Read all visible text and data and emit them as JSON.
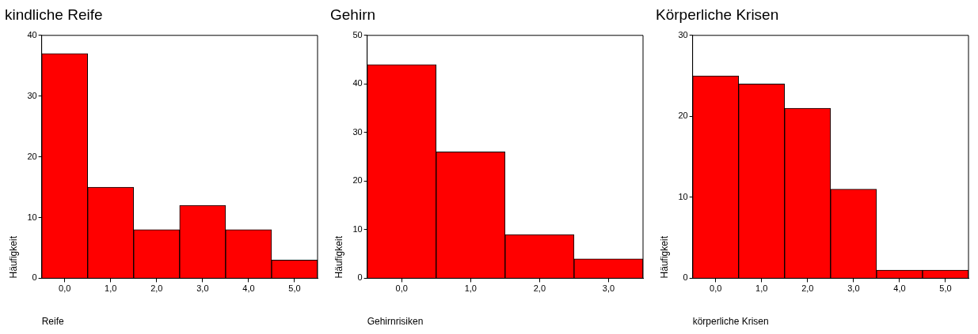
{
  "chart_data": [
    {
      "type": "bar",
      "title": "kindliche Reife",
      "xlabel": "Reife",
      "ylabel": "Häufigkeit",
      "categories": [
        "0,0",
        "1,0",
        "2,0",
        "3,0",
        "4,0",
        "5,0"
      ],
      "values": [
        37,
        15,
        8,
        12,
        8,
        3
      ],
      "color": "#ff0000",
      "ylim": [
        0,
        40
      ],
      "yticks": [
        0,
        10,
        20,
        30,
        40
      ],
      "grid": false,
      "legend": false
    },
    {
      "type": "bar",
      "title": "Gehirn",
      "xlabel": "Gehirnrisiken",
      "ylabel": "Häufigkeit",
      "categories": [
        "0,0",
        "1,0",
        "2,0",
        "3,0"
      ],
      "values": [
        44,
        26,
        9,
        4
      ],
      "color": "#ff0000",
      "ylim": [
        0,
        50
      ],
      "yticks": [
        0,
        10,
        20,
        30,
        40,
        50
      ],
      "grid": false,
      "legend": false
    },
    {
      "type": "bar",
      "title": "Körperliche Krisen",
      "xlabel": "körperliche Krisen",
      "ylabel": "Häufigkeit",
      "categories": [
        "0,0",
        "1,0",
        "2,0",
        "3,0",
        "4,0",
        "5,0"
      ],
      "values": [
        25,
        24,
        21,
        11,
        1,
        1
      ],
      "color": "#ff0000",
      "ylim": [
        0,
        30
      ],
      "yticks": [
        0,
        10,
        20,
        30
      ],
      "grid": false,
      "legend": false
    }
  ]
}
